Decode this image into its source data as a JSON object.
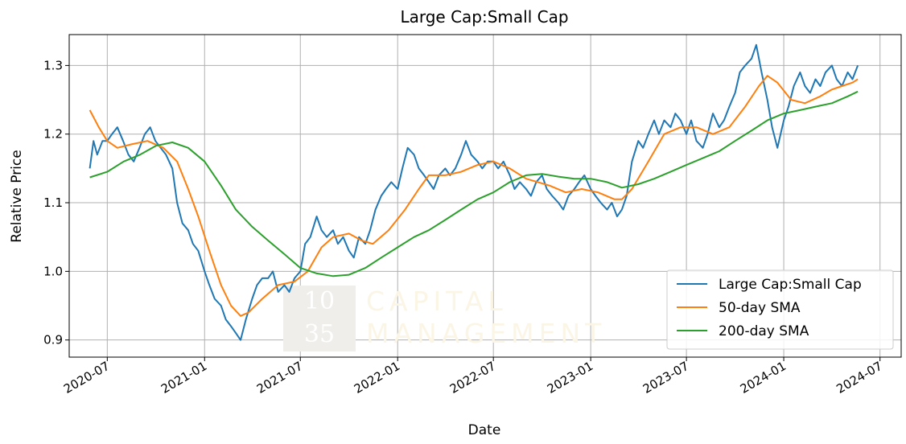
{
  "chart_data": {
    "type": "line",
    "title": "Large Cap:Small Cap",
    "xlabel": "Date",
    "ylabel": "Relative Price",
    "xlim": [
      "2020-04-20",
      "2024-08-10"
    ],
    "ylim": [
      0.875,
      1.345
    ],
    "x_ticks": [
      {
        "date": "2020-07-01",
        "label": "2020-07"
      },
      {
        "date": "2021-01-01",
        "label": "2021-01"
      },
      {
        "date": "2021-07-01",
        "label": "2021-07"
      },
      {
        "date": "2022-01-01",
        "label": "2022-01"
      },
      {
        "date": "2022-07-01",
        "label": "2022-07"
      },
      {
        "date": "2023-01-01",
        "label": "2023-01"
      },
      {
        "date": "2023-07-01",
        "label": "2023-07"
      },
      {
        "date": "2024-01-01",
        "label": "2024-01"
      },
      {
        "date": "2024-07-01",
        "label": "2024-07"
      }
    ],
    "y_ticks": [
      0.9,
      1.0,
      1.1,
      1.2,
      1.3
    ],
    "grid": true,
    "legend_position": "lower-right",
    "watermark": {
      "lines": [
        "10",
        "35"
      ],
      "text_lines": [
        "CAPITAL",
        "MANAGEMENT"
      ]
    },
    "series": [
      {
        "name": "Large Cap:Small Cap",
        "color": "#1f77b4",
        "points": [
          [
            "2020-05-29",
            1.15
          ],
          [
            "2020-06-05",
            1.19
          ],
          [
            "2020-06-12",
            1.17
          ],
          [
            "2020-06-22",
            1.19
          ],
          [
            "2020-07-01",
            1.19
          ],
          [
            "2020-07-10",
            1.2
          ],
          [
            "2020-07-20",
            1.21
          ],
          [
            "2020-07-31",
            1.19
          ],
          [
            "2020-08-10",
            1.17
          ],
          [
            "2020-08-20",
            1.16
          ],
          [
            "2020-08-31",
            1.18
          ],
          [
            "2020-09-10",
            1.2
          ],
          [
            "2020-09-20",
            1.21
          ],
          [
            "2020-09-30",
            1.19
          ],
          [
            "2020-10-10",
            1.18
          ],
          [
            "2020-10-20",
            1.17
          ],
          [
            "2020-11-01",
            1.15
          ],
          [
            "2020-11-10",
            1.1
          ],
          [
            "2020-11-20",
            1.07
          ],
          [
            "2020-12-01",
            1.06
          ],
          [
            "2020-12-10",
            1.04
          ],
          [
            "2020-12-20",
            1.03
          ],
          [
            "2021-01-01",
            1.0
          ],
          [
            "2021-01-10",
            0.98
          ],
          [
            "2021-01-20",
            0.96
          ],
          [
            "2021-02-01",
            0.95
          ],
          [
            "2021-02-10",
            0.93
          ],
          [
            "2021-02-20",
            0.92
          ],
          [
            "2021-03-01",
            0.91
          ],
          [
            "2021-03-10",
            0.9
          ],
          [
            "2021-03-20",
            0.93
          ],
          [
            "2021-04-01",
            0.96
          ],
          [
            "2021-04-10",
            0.98
          ],
          [
            "2021-04-20",
            0.99
          ],
          [
            "2021-05-01",
            0.99
          ],
          [
            "2021-05-10",
            1.0
          ],
          [
            "2021-05-20",
            0.97
          ],
          [
            "2021-06-01",
            0.98
          ],
          [
            "2021-06-10",
            0.97
          ],
          [
            "2021-06-20",
            0.99
          ],
          [
            "2021-07-01",
            1.0
          ],
          [
            "2021-07-10",
            1.04
          ],
          [
            "2021-07-20",
            1.05
          ],
          [
            "2021-08-01",
            1.08
          ],
          [
            "2021-08-10",
            1.06
          ],
          [
            "2021-08-20",
            1.05
          ],
          [
            "2021-09-01",
            1.06
          ],
          [
            "2021-09-10",
            1.04
          ],
          [
            "2021-09-20",
            1.05
          ],
          [
            "2021-10-01",
            1.03
          ],
          [
            "2021-10-10",
            1.02
          ],
          [
            "2021-10-20",
            1.05
          ],
          [
            "2021-11-01",
            1.04
          ],
          [
            "2021-11-10",
            1.06
          ],
          [
            "2021-11-20",
            1.09
          ],
          [
            "2021-12-01",
            1.11
          ],
          [
            "2021-12-10",
            1.12
          ],
          [
            "2021-12-20",
            1.13
          ],
          [
            "2022-01-01",
            1.12
          ],
          [
            "2022-01-10",
            1.15
          ],
          [
            "2022-01-20",
            1.18
          ],
          [
            "2022-02-01",
            1.17
          ],
          [
            "2022-02-10",
            1.15
          ],
          [
            "2022-02-20",
            1.14
          ],
          [
            "2022-03-01",
            1.13
          ],
          [
            "2022-03-10",
            1.12
          ],
          [
            "2022-03-20",
            1.14
          ],
          [
            "2022-04-01",
            1.15
          ],
          [
            "2022-04-10",
            1.14
          ],
          [
            "2022-04-20",
            1.15
          ],
          [
            "2022-05-01",
            1.17
          ],
          [
            "2022-05-10",
            1.19
          ],
          [
            "2022-05-20",
            1.17
          ],
          [
            "2022-06-01",
            1.16
          ],
          [
            "2022-06-10",
            1.15
          ],
          [
            "2022-06-20",
            1.16
          ],
          [
            "2022-07-01",
            1.16
          ],
          [
            "2022-07-10",
            1.15
          ],
          [
            "2022-07-20",
            1.16
          ],
          [
            "2022-08-01",
            1.14
          ],
          [
            "2022-08-10",
            1.12
          ],
          [
            "2022-08-20",
            1.13
          ],
          [
            "2022-09-01",
            1.12
          ],
          [
            "2022-09-10",
            1.11
          ],
          [
            "2022-09-20",
            1.13
          ],
          [
            "2022-10-01",
            1.14
          ],
          [
            "2022-10-10",
            1.12
          ],
          [
            "2022-10-20",
            1.11
          ],
          [
            "2022-11-01",
            1.1
          ],
          [
            "2022-11-10",
            1.09
          ],
          [
            "2022-11-20",
            1.11
          ],
          [
            "2022-12-01",
            1.12
          ],
          [
            "2022-12-10",
            1.13
          ],
          [
            "2022-12-20",
            1.14
          ],
          [
            "2023-01-01",
            1.12
          ],
          [
            "2023-01-10",
            1.11
          ],
          [
            "2023-01-20",
            1.1
          ],
          [
            "2023-02-01",
            1.09
          ],
          [
            "2023-02-10",
            1.1
          ],
          [
            "2023-02-20",
            1.08
          ],
          [
            "2023-03-01",
            1.09
          ],
          [
            "2023-03-10",
            1.11
          ],
          [
            "2023-03-20",
            1.16
          ],
          [
            "2023-04-01",
            1.19
          ],
          [
            "2023-04-10",
            1.18
          ],
          [
            "2023-04-20",
            1.2
          ],
          [
            "2023-05-01",
            1.22
          ],
          [
            "2023-05-10",
            1.2
          ],
          [
            "2023-05-20",
            1.22
          ],
          [
            "2023-06-01",
            1.21
          ],
          [
            "2023-06-10",
            1.23
          ],
          [
            "2023-06-20",
            1.22
          ],
          [
            "2023-07-01",
            1.2
          ],
          [
            "2023-07-10",
            1.22
          ],
          [
            "2023-07-20",
            1.19
          ],
          [
            "2023-08-01",
            1.18
          ],
          [
            "2023-08-10",
            1.2
          ],
          [
            "2023-08-20",
            1.23
          ],
          [
            "2023-09-01",
            1.21
          ],
          [
            "2023-09-10",
            1.22
          ],
          [
            "2023-09-20",
            1.24
          ],
          [
            "2023-10-01",
            1.26
          ],
          [
            "2023-10-10",
            1.29
          ],
          [
            "2023-10-20",
            1.3
          ],
          [
            "2023-11-01",
            1.31
          ],
          [
            "2023-11-10",
            1.33
          ],
          [
            "2023-11-20",
            1.29
          ],
          [
            "2023-12-01",
            1.25
          ],
          [
            "2023-12-10",
            1.21
          ],
          [
            "2023-12-20",
            1.18
          ],
          [
            "2024-01-01",
            1.22
          ],
          [
            "2024-01-10",
            1.24
          ],
          [
            "2024-01-20",
            1.27
          ],
          [
            "2024-02-01",
            1.29
          ],
          [
            "2024-02-10",
            1.27
          ],
          [
            "2024-02-20",
            1.26
          ],
          [
            "2024-03-01",
            1.28
          ],
          [
            "2024-03-10",
            1.27
          ],
          [
            "2024-03-20",
            1.29
          ],
          [
            "2024-04-01",
            1.3
          ],
          [
            "2024-04-10",
            1.28
          ],
          [
            "2024-04-20",
            1.27
          ],
          [
            "2024-05-01",
            1.29
          ],
          [
            "2024-05-10",
            1.28
          ],
          [
            "2024-05-20",
            1.3
          ]
        ]
      },
      {
        "name": "50-day SMA",
        "color": "#ff7f0e",
        "points": [
          [
            "2020-05-29",
            1.235
          ],
          [
            "2020-06-15",
            1.21
          ],
          [
            "2020-07-01",
            1.19
          ],
          [
            "2020-07-20",
            1.18
          ],
          [
            "2020-08-15",
            1.185
          ],
          [
            "2020-09-15",
            1.19
          ],
          [
            "2020-10-15",
            1.18
          ],
          [
            "2020-11-10",
            1.16
          ],
          [
            "2020-12-01",
            1.12
          ],
          [
            "2020-12-20",
            1.08
          ],
          [
            "2021-01-10",
            1.03
          ],
          [
            "2021-02-01",
            0.98
          ],
          [
            "2021-02-20",
            0.95
          ],
          [
            "2021-03-10",
            0.935
          ],
          [
            "2021-03-25",
            0.94
          ],
          [
            "2021-04-20",
            0.96
          ],
          [
            "2021-05-20",
            0.98
          ],
          [
            "2021-06-20",
            0.985
          ],
          [
            "2021-07-15",
            1.0
          ],
          [
            "2021-08-10",
            1.035
          ],
          [
            "2021-09-01",
            1.05
          ],
          [
            "2021-10-01",
            1.055
          ],
          [
            "2021-10-25",
            1.045
          ],
          [
            "2021-11-15",
            1.04
          ],
          [
            "2021-12-15",
            1.06
          ],
          [
            "2022-01-15",
            1.09
          ],
          [
            "2022-02-10",
            1.12
          ],
          [
            "2022-03-01",
            1.14
          ],
          [
            "2022-04-01",
            1.14
          ],
          [
            "2022-05-01",
            1.145
          ],
          [
            "2022-06-01",
            1.155
          ],
          [
            "2022-07-01",
            1.16
          ],
          [
            "2022-08-01",
            1.15
          ],
          [
            "2022-09-01",
            1.135
          ],
          [
            "2022-10-15",
            1.125
          ],
          [
            "2022-11-15",
            1.115
          ],
          [
            "2022-12-15",
            1.12
          ],
          [
            "2023-01-15",
            1.115
          ],
          [
            "2023-02-15",
            1.105
          ],
          [
            "2023-03-01",
            1.105
          ],
          [
            "2023-03-20",
            1.12
          ],
          [
            "2023-04-20",
            1.16
          ],
          [
            "2023-05-20",
            1.2
          ],
          [
            "2023-06-20",
            1.21
          ],
          [
            "2023-07-20",
            1.21
          ],
          [
            "2023-08-20",
            1.2
          ],
          [
            "2023-09-20",
            1.21
          ],
          [
            "2023-10-20",
            1.24
          ],
          [
            "2023-11-15",
            1.27
          ],
          [
            "2023-12-01",
            1.285
          ],
          [
            "2023-12-20",
            1.275
          ],
          [
            "2024-01-15",
            1.25
          ],
          [
            "2024-02-10",
            1.245
          ],
          [
            "2024-03-10",
            1.255
          ],
          [
            "2024-04-01",
            1.265
          ],
          [
            "2024-04-20",
            1.27
          ],
          [
            "2024-05-10",
            1.275
          ],
          [
            "2024-05-20",
            1.28
          ]
        ]
      },
      {
        "name": "200-day SMA",
        "color": "#2ca02c",
        "points": [
          [
            "2020-05-29",
            1.137
          ],
          [
            "2020-07-01",
            1.145
          ],
          [
            "2020-08-01",
            1.16
          ],
          [
            "2020-09-01",
            1.17
          ],
          [
            "2020-10-01",
            1.183
          ],
          [
            "2020-11-01",
            1.188
          ],
          [
            "2020-12-01",
            1.18
          ],
          [
            "2021-01-01",
            1.16
          ],
          [
            "2021-02-01",
            1.125
          ],
          [
            "2021-03-01",
            1.09
          ],
          [
            "2021-04-01",
            1.065
          ],
          [
            "2021-05-01",
            1.045
          ],
          [
            "2021-06-01",
            1.025
          ],
          [
            "2021-07-01",
            1.005
          ],
          [
            "2021-08-01",
            0.997
          ],
          [
            "2021-09-01",
            0.993
          ],
          [
            "2021-10-01",
            0.995
          ],
          [
            "2021-11-01",
            1.005
          ],
          [
            "2021-12-01",
            1.02
          ],
          [
            "2022-01-01",
            1.035
          ],
          [
            "2022-02-01",
            1.05
          ],
          [
            "2022-03-01",
            1.06
          ],
          [
            "2022-04-01",
            1.075
          ],
          [
            "2022-05-01",
            1.09
          ],
          [
            "2022-06-01",
            1.105
          ],
          [
            "2022-07-01",
            1.115
          ],
          [
            "2022-08-01",
            1.13
          ],
          [
            "2022-09-01",
            1.14
          ],
          [
            "2022-10-01",
            1.142
          ],
          [
            "2022-11-01",
            1.138
          ],
          [
            "2022-12-01",
            1.135
          ],
          [
            "2023-01-01",
            1.135
          ],
          [
            "2023-02-01",
            1.13
          ],
          [
            "2023-03-01",
            1.122
          ],
          [
            "2023-04-01",
            1.127
          ],
          [
            "2023-05-01",
            1.135
          ],
          [
            "2023-06-01",
            1.145
          ],
          [
            "2023-07-01",
            1.155
          ],
          [
            "2023-08-01",
            1.165
          ],
          [
            "2023-09-01",
            1.175
          ],
          [
            "2023-10-01",
            1.19
          ],
          [
            "2023-11-01",
            1.205
          ],
          [
            "2023-12-01",
            1.22
          ],
          [
            "2024-01-01",
            1.23
          ],
          [
            "2024-02-01",
            1.235
          ],
          [
            "2024-03-01",
            1.24
          ],
          [
            "2024-04-01",
            1.245
          ],
          [
            "2024-05-01",
            1.255
          ],
          [
            "2024-05-20",
            1.262
          ]
        ]
      }
    ]
  }
}
